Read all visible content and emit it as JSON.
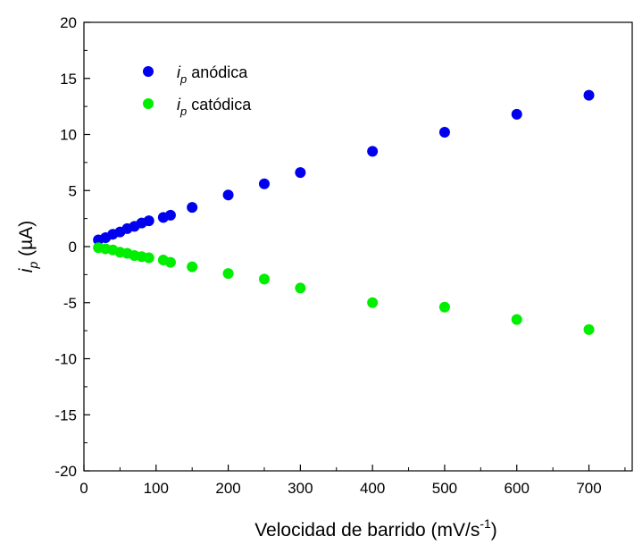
{
  "chart_data": {
    "type": "scatter",
    "xlabel": "Velocidad de barrido (mV/s",
    "xlabel_sup": "-1",
    "xlabel_end": ")",
    "ylabel_italic": "i",
    "ylabel_sub": "p",
    "ylabel_unit": " (µA)",
    "xlim": [
      0,
      760
    ],
    "ylim": [
      -20,
      20
    ],
    "xticks": [
      0,
      100,
      200,
      300,
      400,
      500,
      600,
      700
    ],
    "yticks": [
      -20,
      -15,
      -10,
      -5,
      0,
      5,
      10,
      15,
      20
    ],
    "legend_position": "top-left",
    "grid": false,
    "series": [
      {
        "name_italic": "i",
        "name_sub": "p",
        "name_text": " anódica",
        "color": "#0000ee",
        "x": [
          20,
          30,
          40,
          50,
          60,
          70,
          80,
          90,
          110,
          120,
          150,
          200,
          250,
          300,
          400,
          500,
          600,
          700
        ],
        "y": [
          0.6,
          0.8,
          1.1,
          1.3,
          1.6,
          1.8,
          2.1,
          2.3,
          2.6,
          2.8,
          3.5,
          4.6,
          5.6,
          6.6,
          8.5,
          10.2,
          11.8,
          13.5
        ]
      },
      {
        "name_italic": "i",
        "name_sub": "p",
        "name_text": " catódica",
        "color": "#00ee00",
        "x": [
          20,
          30,
          40,
          50,
          60,
          70,
          80,
          90,
          110,
          120,
          150,
          200,
          250,
          300,
          400,
          500,
          600,
          700
        ],
        "y": [
          -0.1,
          -0.2,
          -0.3,
          -0.5,
          -0.6,
          -0.8,
          -0.9,
          -1.0,
          -1.2,
          -1.4,
          -1.8,
          -2.4,
          -2.9,
          -3.7,
          -5.0,
          -5.4,
          -6.5,
          -7.4
        ]
      }
    ]
  }
}
